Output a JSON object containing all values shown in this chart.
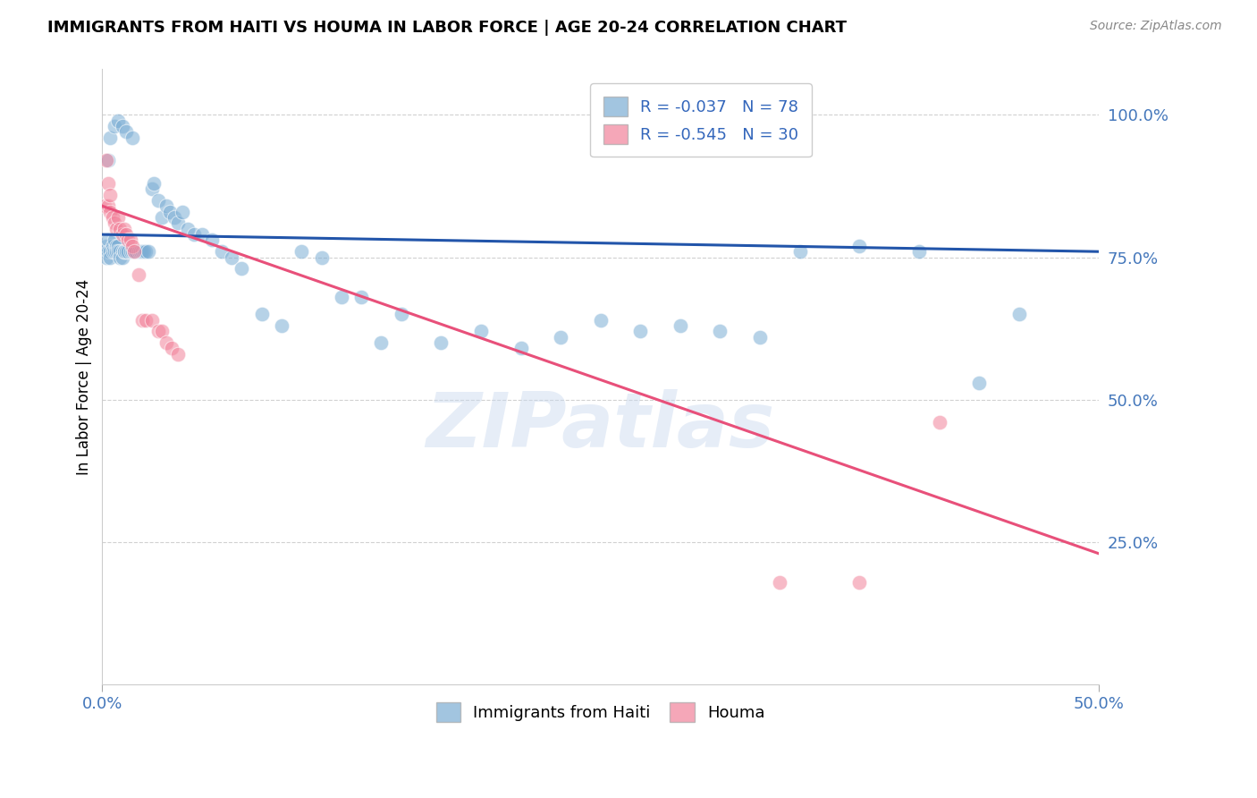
{
  "title": "IMMIGRANTS FROM HAITI VS HOUMA IN LABOR FORCE | AGE 20-24 CORRELATION CHART",
  "source": "Source: ZipAtlas.com",
  "ylabel": "In Labor Force | Age 20-24",
  "xlim": [
    0.0,
    0.5
  ],
  "ylim": [
    0.0,
    1.08
  ],
  "yticks": [
    0.25,
    0.5,
    0.75,
    1.0
  ],
  "ytick_labels": [
    "25.0%",
    "50.0%",
    "75.0%",
    "100.0%"
  ],
  "xticks": [
    0.0,
    0.5
  ],
  "xtick_labels": [
    "0.0%",
    "50.0%"
  ],
  "blue_R": -0.037,
  "blue_N": 78,
  "pink_R": -0.545,
  "pink_N": 30,
  "blue_color": "#7BADD4",
  "pink_color": "#F2829A",
  "blue_line_color": "#2255AA",
  "pink_line_color": "#E8507A",
  "watermark": "ZIPatlas",
  "legend_label_blue": "Immigrants from Haiti",
  "legend_label_pink": "Houma",
  "blue_scatter_x": [
    0.001,
    0.002,
    0.002,
    0.003,
    0.003,
    0.004,
    0.004,
    0.005,
    0.005,
    0.006,
    0.006,
    0.007,
    0.007,
    0.008,
    0.008,
    0.009,
    0.009,
    0.01,
    0.01,
    0.011,
    0.011,
    0.012,
    0.013,
    0.014,
    0.015,
    0.016,
    0.017,
    0.018,
    0.019,
    0.02,
    0.021,
    0.022,
    0.023,
    0.025,
    0.026,
    0.028,
    0.03,
    0.032,
    0.034,
    0.036,
    0.038,
    0.04,
    0.043,
    0.046,
    0.05,
    0.055,
    0.06,
    0.065,
    0.07,
    0.08,
    0.09,
    0.1,
    0.11,
    0.12,
    0.13,
    0.14,
    0.15,
    0.17,
    0.19,
    0.21,
    0.23,
    0.25,
    0.27,
    0.29,
    0.31,
    0.33,
    0.35,
    0.38,
    0.41,
    0.44,
    0.46,
    0.003,
    0.004,
    0.006,
    0.008,
    0.01,
    0.012,
    0.015
  ],
  "blue_scatter_y": [
    0.76,
    0.77,
    0.75,
    0.78,
    0.76,
    0.76,
    0.75,
    0.77,
    0.76,
    0.78,
    0.76,
    0.77,
    0.76,
    0.77,
    0.76,
    0.76,
    0.75,
    0.76,
    0.75,
    0.76,
    0.76,
    0.76,
    0.76,
    0.76,
    0.76,
    0.76,
    0.76,
    0.76,
    0.76,
    0.76,
    0.76,
    0.76,
    0.76,
    0.87,
    0.88,
    0.85,
    0.82,
    0.84,
    0.83,
    0.82,
    0.81,
    0.83,
    0.8,
    0.79,
    0.79,
    0.78,
    0.76,
    0.75,
    0.73,
    0.65,
    0.63,
    0.76,
    0.75,
    0.68,
    0.68,
    0.6,
    0.65,
    0.6,
    0.62,
    0.59,
    0.61,
    0.64,
    0.62,
    0.63,
    0.62,
    0.61,
    0.76,
    0.77,
    0.76,
    0.53,
    0.65,
    0.92,
    0.96,
    0.98,
    0.99,
    0.98,
    0.97,
    0.96
  ],
  "pink_scatter_x": [
    0.001,
    0.002,
    0.003,
    0.003,
    0.004,
    0.004,
    0.005,
    0.006,
    0.007,
    0.008,
    0.009,
    0.01,
    0.011,
    0.012,
    0.013,
    0.014,
    0.015,
    0.016,
    0.018,
    0.02,
    0.022,
    0.025,
    0.028,
    0.03,
    0.032,
    0.035,
    0.038,
    0.34,
    0.38,
    0.42
  ],
  "pink_scatter_y": [
    0.84,
    0.92,
    0.88,
    0.84,
    0.86,
    0.83,
    0.82,
    0.81,
    0.8,
    0.82,
    0.8,
    0.79,
    0.8,
    0.79,
    0.78,
    0.78,
    0.77,
    0.76,
    0.72,
    0.64,
    0.64,
    0.64,
    0.62,
    0.62,
    0.6,
    0.59,
    0.58,
    0.18,
    0.18,
    0.46
  ],
  "blue_trend_x": [
    0.0,
    0.5
  ],
  "blue_trend_y": [
    0.79,
    0.76
  ],
  "pink_trend_x": [
    0.0,
    0.5
  ],
  "pink_trend_y": [
    0.84,
    0.23
  ]
}
